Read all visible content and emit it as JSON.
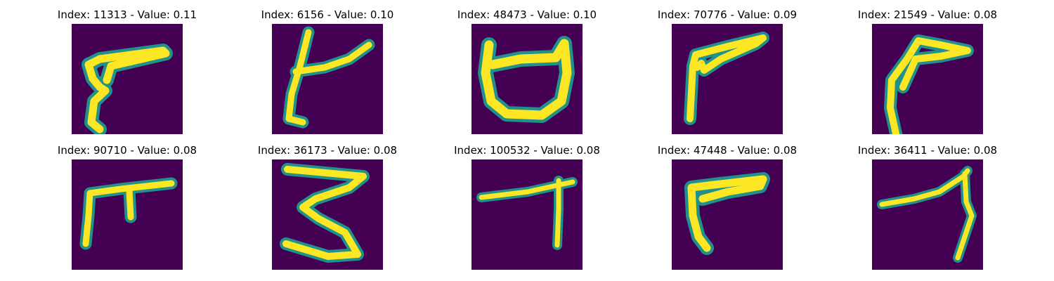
{
  "colors": {
    "background": "#440154",
    "stroke_edge": "#21918c",
    "stroke_core": "#fde725"
  },
  "panels": [
    {
      "title": "Index: 11313 - Value: 0.11",
      "icon": "handwritten-glyph"
    },
    {
      "title": "Index: 6156 - Value: 0.10",
      "icon": "handwritten-glyph"
    },
    {
      "title": "Index: 48473 - Value: 0.10",
      "icon": "handwritten-glyph"
    },
    {
      "title": "Index: 70776 - Value: 0.09",
      "icon": "handwritten-glyph"
    },
    {
      "title": "Index: 21549 - Value: 0.08",
      "icon": "handwritten-glyph"
    },
    {
      "title": "Index: 90710 - Value: 0.08",
      "icon": "handwritten-glyph"
    },
    {
      "title": "Index: 36173 - Value: 0.08",
      "icon": "handwritten-glyph"
    },
    {
      "title": "Index: 100532 - Value: 0.08",
      "icon": "handwritten-glyph"
    },
    {
      "title": "Index: 47448 - Value: 0.08",
      "icon": "handwritten-glyph"
    },
    {
      "title": "Index: 36411 - Value: 0.08",
      "icon": "handwritten-glyph"
    }
  ]
}
